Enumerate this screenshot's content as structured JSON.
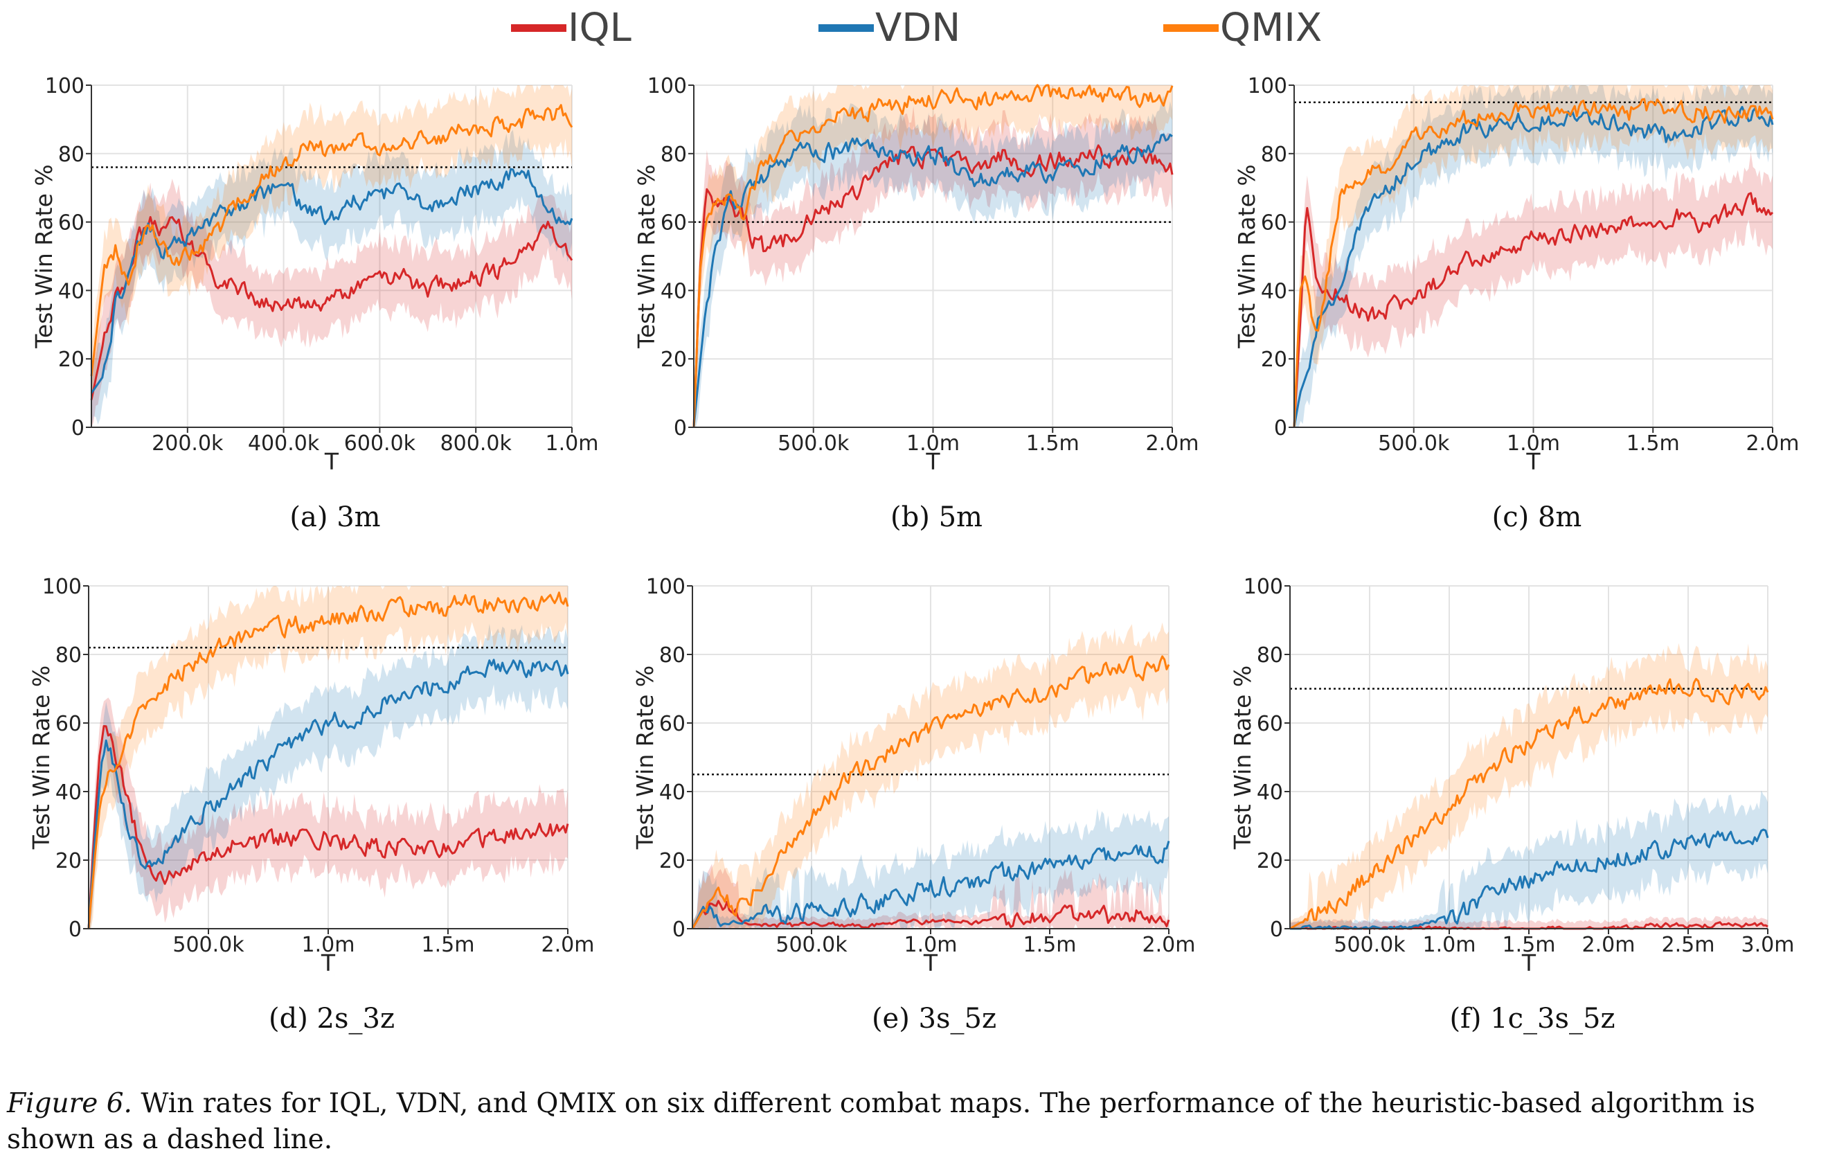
{
  "figure": {
    "caption_label": "Figure 6.",
    "caption_text": " Win rates for IQL, VDN, and QMIX on six different combat maps. The performance of the heuristic-based algorithm is shown as a dashed line."
  },
  "legend": [
    {
      "name": "IQL",
      "color": "#d62728"
    },
    {
      "name": "VDN",
      "color": "#1f77b4"
    },
    {
      "name": "QMIX",
      "color": "#ff7f0e"
    }
  ],
  "chart_data": [
    {
      "type": "line",
      "caption": "(a)  3m",
      "xlabel": "T",
      "ylabel": "Test Win Rate %",
      "xlim": [
        0,
        1000000
      ],
      "ylim": [
        0,
        100
      ],
      "xticks": [
        200000,
        400000,
        600000,
        800000,
        1000000
      ],
      "xtick_labels": [
        "200.0k",
        "400.0k",
        "600.0k",
        "800.0k",
        "1.0m"
      ],
      "yticks": [
        0,
        20,
        40,
        60,
        80,
        100
      ],
      "ytick_labels": [
        "0",
        "20",
        "40",
        "60",
        "80",
        "100"
      ],
      "heuristic": 76,
      "x": [
        0,
        25000,
        50000,
        75000,
        100000,
        125000,
        150000,
        175000,
        200000,
        250000,
        300000,
        350000,
        400000,
        450000,
        500000,
        550000,
        600000,
        650000,
        700000,
        750000,
        800000,
        850000,
        900000,
        950000,
        1000000
      ],
      "series": [
        {
          "name": "IQL",
          "values": [
            8,
            25,
            38,
            45,
            55,
            60,
            58,
            62,
            55,
            45,
            40,
            38,
            36,
            35,
            38,
            40,
            42,
            44,
            40,
            42,
            44,
            46,
            52,
            58,
            50
          ]
        },
        {
          "name": "VDN",
          "values": [
            10,
            15,
            35,
            45,
            55,
            58,
            50,
            56,
            55,
            60,
            65,
            68,
            70,
            64,
            62,
            66,
            68,
            68,
            64,
            66,
            70,
            72,
            76,
            62,
            62
          ]
        },
        {
          "name": "QMIX",
          "values": [
            15,
            45,
            52,
            42,
            55,
            60,
            52,
            48,
            50,
            55,
            65,
            72,
            78,
            82,
            80,
            84,
            82,
            84,
            85,
            86,
            88,
            88,
            90,
            92,
            90
          ]
        }
      ]
    },
    {
      "type": "line",
      "caption": "(b)  5m",
      "xlabel": "T",
      "ylabel": "Test Win Rate %",
      "xlim": [
        0,
        2000000
      ],
      "ylim": [
        0,
        100
      ],
      "xticks": [
        500000,
        1000000,
        1500000,
        2000000
      ],
      "xtick_labels": [
        "500.0k",
        "1.0m",
        "1.5m",
        "2.0m"
      ],
      "yticks": [
        0,
        20,
        40,
        60,
        80,
        100
      ],
      "ytick_labels": [
        "0",
        "20",
        "40",
        "60",
        "80",
        "100"
      ],
      "heuristic": 60,
      "x": [
        0,
        25000,
        50000,
        100000,
        150000,
        200000,
        250000,
        300000,
        400000,
        500000,
        600000,
        700000,
        800000,
        900000,
        1000000,
        1100000,
        1200000,
        1300000,
        1400000,
        1500000,
        1600000,
        1700000,
        1800000,
        1900000,
        2000000
      ],
      "series": [
        {
          "name": "IQL",
          "values": [
            0,
            45,
            68,
            66,
            65,
            62,
            55,
            52,
            55,
            62,
            66,
            70,
            76,
            80,
            78,
            78,
            76,
            80,
            76,
            78,
            78,
            80,
            78,
            80,
            75
          ]
        },
        {
          "name": "VDN",
          "values": [
            0,
            18,
            35,
            55,
            68,
            65,
            70,
            74,
            78,
            82,
            80,
            82,
            80,
            78,
            80,
            76,
            72,
            74,
            76,
            74,
            76,
            78,
            80,
            82,
            85
          ]
        },
        {
          "name": "QMIX",
          "values": [
            0,
            45,
            60,
            65,
            68,
            62,
            70,
            78,
            84,
            88,
            90,
            92,
            94,
            95,
            95,
            96,
            96,
            96,
            97,
            97,
            97,
            97,
            97,
            97,
            97
          ]
        }
      ]
    },
    {
      "type": "line",
      "caption": "(c)  8m",
      "xlabel": "T",
      "ylabel": "Test Win Rate %",
      "xlim": [
        0,
        2000000
      ],
      "ylim": [
        0,
        100
      ],
      "xticks": [
        500000,
        1000000,
        1500000,
        2000000
      ],
      "xtick_labels": [
        "500.0k",
        "1.0m",
        "1.5m",
        "2.0m"
      ],
      "yticks": [
        0,
        20,
        40,
        60,
        80,
        100
      ],
      "ytick_labels": [
        "0",
        "20",
        "40",
        "60",
        "80",
        "100"
      ],
      "heuristic": 95,
      "x": [
        0,
        25000,
        50000,
        75000,
        100000,
        150000,
        200000,
        250000,
        300000,
        400000,
        500000,
        600000,
        700000,
        800000,
        900000,
        1000000,
        1100000,
        1200000,
        1300000,
        1400000,
        1500000,
        1600000,
        1700000,
        1800000,
        1900000,
        2000000
      ],
      "series": [
        {
          "name": "IQL",
          "values": [
            0,
            30,
            65,
            55,
            42,
            40,
            38,
            35,
            32,
            35,
            38,
            42,
            48,
            50,
            52,
            55,
            55,
            58,
            58,
            60,
            60,
            62,
            58,
            62,
            66,
            62
          ]
        },
        {
          "name": "VDN",
          "values": [
            0,
            10,
            15,
            22,
            30,
            35,
            45,
            55,
            62,
            70,
            78,
            82,
            86,
            88,
            90,
            90,
            90,
            92,
            90,
            88,
            86,
            84,
            88,
            90,
            92,
            90
          ]
        },
        {
          "name": "QMIX",
          "values": [
            0,
            40,
            45,
            30,
            28,
            50,
            70,
            72,
            74,
            78,
            84,
            88,
            90,
            90,
            92,
            92,
            92,
            92,
            94,
            92,
            94,
            92,
            92,
            92,
            92,
            92
          ]
        }
      ]
    },
    {
      "type": "line",
      "caption": "(d)  2s_3z",
      "xlabel": "T",
      "ylabel": "Test Win Rate %",
      "xlim": [
        0,
        2000000
      ],
      "ylim": [
        0,
        100
      ],
      "xticks": [
        500000,
        1000000,
        1500000,
        2000000
      ],
      "xtick_labels": [
        "500.0k",
        "1.0m",
        "1.5m",
        "2.0m"
      ],
      "yticks": [
        0,
        20,
        40,
        60,
        80,
        100
      ],
      "ytick_labels": [
        "0",
        "20",
        "40",
        "60",
        "80",
        "100"
      ],
      "heuristic": 82,
      "x": [
        0,
        25000,
        50000,
        75000,
        100000,
        150000,
        200000,
        250000,
        300000,
        400000,
        500000,
        600000,
        700000,
        800000,
        900000,
        1000000,
        1100000,
        1200000,
        1300000,
        1400000,
        1500000,
        1600000,
        1700000,
        1800000,
        1900000,
        2000000
      ],
      "series": [
        {
          "name": "IQL",
          "values": [
            0,
            30,
            55,
            60,
            55,
            40,
            28,
            20,
            15,
            18,
            22,
            24,
            25,
            26,
            27,
            26,
            25,
            24,
            24,
            23,
            24,
            25,
            27,
            28,
            28,
            29
          ]
        },
        {
          "name": "VDN",
          "values": [
            0,
            25,
            45,
            55,
            50,
            35,
            22,
            18,
            20,
            28,
            36,
            40,
            46,
            52,
            56,
            60,
            62,
            65,
            68,
            70,
            72,
            74,
            76,
            76,
            76,
            76
          ]
        },
        {
          "name": "QMIX",
          "values": [
            0,
            20,
            38,
            45,
            45,
            55,
            60,
            65,
            70,
            76,
            80,
            84,
            87,
            88,
            89,
            90,
            91,
            92,
            93,
            93,
            94,
            95,
            95,
            95,
            95,
            96
          ]
        }
      ]
    },
    {
      "type": "line",
      "caption": "(e)  3s_5z",
      "xlabel": "T",
      "ylabel": "Test Win Rate %",
      "xlim": [
        0,
        2000000
      ],
      "ylim": [
        0,
        100
      ],
      "xticks": [
        500000,
        1000000,
        1500000,
        2000000
      ],
      "xtick_labels": [
        "500.0k",
        "1.0m",
        "1.5m",
        "2.0m"
      ],
      "yticks": [
        0,
        20,
        40,
        60,
        80,
        100
      ],
      "ytick_labels": [
        "0",
        "20",
        "40",
        "60",
        "80",
        "100"
      ],
      "heuristic": 45,
      "x": [
        0,
        50000,
        100000,
        150000,
        200000,
        250000,
        300000,
        400000,
        500000,
        600000,
        700000,
        800000,
        900000,
        1000000,
        1100000,
        1200000,
        1300000,
        1400000,
        1500000,
        1600000,
        1700000,
        1800000,
        1900000,
        2000000
      ],
      "series": [
        {
          "name": "IQL",
          "values": [
            0,
            6,
            9,
            6,
            2,
            1,
            1,
            1,
            1,
            1,
            1,
            1,
            2,
            2,
            2,
            2,
            3,
            3,
            3,
            3,
            3,
            4,
            4,
            4
          ]
        },
        {
          "name": "VDN",
          "values": [
            0,
            7,
            5,
            1,
            2,
            3,
            4,
            4,
            5,
            6,
            7,
            8,
            10,
            12,
            13,
            14,
            16,
            17,
            18,
            19,
            20,
            21,
            22,
            23
          ]
        },
        {
          "name": "QMIX",
          "values": [
            0,
            6,
            9,
            8,
            6,
            10,
            14,
            24,
            32,
            40,
            46,
            50,
            54,
            58,
            62,
            64,
            66,
            68,
            70,
            72,
            74,
            76,
            76,
            77
          ]
        }
      ]
    },
    {
      "type": "line",
      "caption": "(f)  1c_3s_5z",
      "xlabel": "T",
      "ylabel": "Test Win Rate %",
      "xlim": [
        0,
        3000000
      ],
      "ylim": [
        0,
        100
      ],
      "xticks": [
        500000,
        1000000,
        1500000,
        2000000,
        2500000,
        3000000
      ],
      "xtick_labels": [
        "500.0k",
        "1.0m",
        "1.5m",
        "2.0m",
        "2.5m",
        "3.0m"
      ],
      "yticks": [
        0,
        20,
        40,
        60,
        80,
        100
      ],
      "ytick_labels": [
        "0",
        "20",
        "40",
        "60",
        "80",
        "100"
      ],
      "heuristic": 70,
      "x": [
        0,
        150000,
        300000,
        450000,
        600000,
        750000,
        900000,
        1050000,
        1200000,
        1350000,
        1500000,
        1650000,
        1800000,
        1950000,
        2100000,
        2250000,
        2400000,
        2550000,
        2700000,
        2850000,
        3000000
      ],
      "series": [
        {
          "name": "IQL",
          "values": [
            0,
            0,
            0,
            0,
            0,
            0,
            0,
            0,
            0,
            0,
            0,
            0,
            0,
            0,
            0,
            1,
            1,
            1,
            1,
            1,
            1
          ]
        },
        {
          "name": "VDN",
          "values": [
            0,
            0,
            0,
            0,
            0,
            0,
            2,
            4,
            8,
            12,
            14,
            16,
            18,
            20,
            21,
            22,
            24,
            25,
            26,
            26,
            26
          ]
        },
        {
          "name": "QMIX",
          "values": [
            0,
            4,
            8,
            14,
            20,
            26,
            32,
            38,
            44,
            50,
            55,
            58,
            62,
            64,
            66,
            68,
            70,
            70,
            68,
            69,
            70
          ]
        }
      ]
    }
  ]
}
